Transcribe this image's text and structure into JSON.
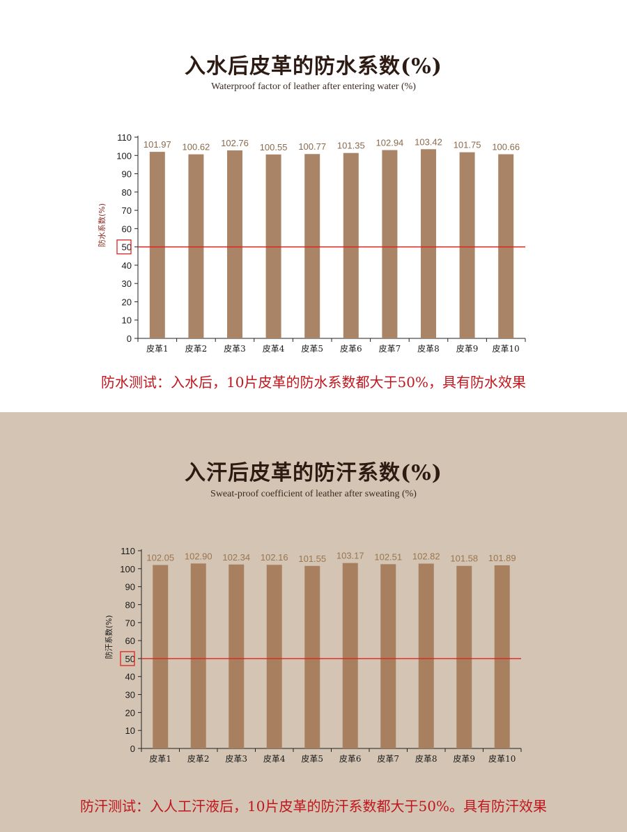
{
  "chart_data": [
    {
      "type": "bar",
      "title": "入水后皮革的防水系数(%)",
      "subtitle": "Waterproof factor of leather after entering water (%)",
      "ylabel": "防水系数(%)",
      "xlabel": "",
      "categories": [
        "皮革1",
        "皮革2",
        "皮革3",
        "皮革4",
        "皮革5",
        "皮革6",
        "皮革7",
        "皮革8",
        "皮革9",
        "皮革10"
      ],
      "values": [
        101.97,
        100.62,
        102.76,
        100.55,
        100.77,
        101.35,
        102.94,
        103.42,
        101.75,
        100.66
      ],
      "value_labels": [
        "101.97",
        "100.62",
        "102.76",
        "100.55",
        "100.77",
        "101.35",
        "102.94",
        "103.42",
        "101.75",
        "100.66"
      ],
      "ylim": [
        0,
        110
      ],
      "yticks": [
        "0",
        "10",
        "20",
        "30",
        "40",
        "50",
        "60",
        "70",
        "80",
        "90",
        "100",
        "110"
      ],
      "reference_line": 50,
      "grid": false,
      "legend": "none",
      "conclusion": "防水测试：入水后，10片皮革的防水系数都大于50%，具有防水效果"
    },
    {
      "type": "bar",
      "title": "入汗后皮革的防汗系数(%)",
      "subtitle": "Sweat-proof coefficient of leather after sweating (%)",
      "ylabel": "防汗系数(%)",
      "xlabel": "",
      "categories": [
        "皮革1",
        "皮革2",
        "皮革3",
        "皮革4",
        "皮革5",
        "皮革6",
        "皮革7",
        "皮革8",
        "皮革9",
        "皮革10"
      ],
      "values": [
        102.05,
        102.9,
        102.34,
        102.16,
        101.55,
        103.17,
        102.51,
        102.82,
        101.58,
        101.89
      ],
      "value_labels": [
        "102.05",
        "102.90",
        "102.34",
        "102.16",
        "101.55",
        "103.17",
        "102.51",
        "102.82",
        "101.58",
        "101.89"
      ],
      "ylim": [
        0,
        110
      ],
      "yticks": [
        "0",
        "10",
        "20",
        "30",
        "40",
        "50",
        "60",
        "70",
        "80",
        "90",
        "100",
        "110"
      ],
      "reference_line": 50,
      "grid": false,
      "legend": "none",
      "conclusion": "防汗测试：入人工汗液后，10片皮革的防汗系数都大于50%。具有防汗效果"
    }
  ],
  "colors": {
    "top_background": "#ffffff",
    "bottom_background": "#d3c4b3",
    "bar_top": "#a98467",
    "bar_bottom": "#a8805f",
    "label_top": "#8a6a4a",
    "label_bottom": "#9a7550",
    "ylabel_top": "#8b2b20",
    "ylabel_bottom": "#1a1a1a",
    "reference": "#e0231b",
    "conclusion": "#c0161d"
  }
}
